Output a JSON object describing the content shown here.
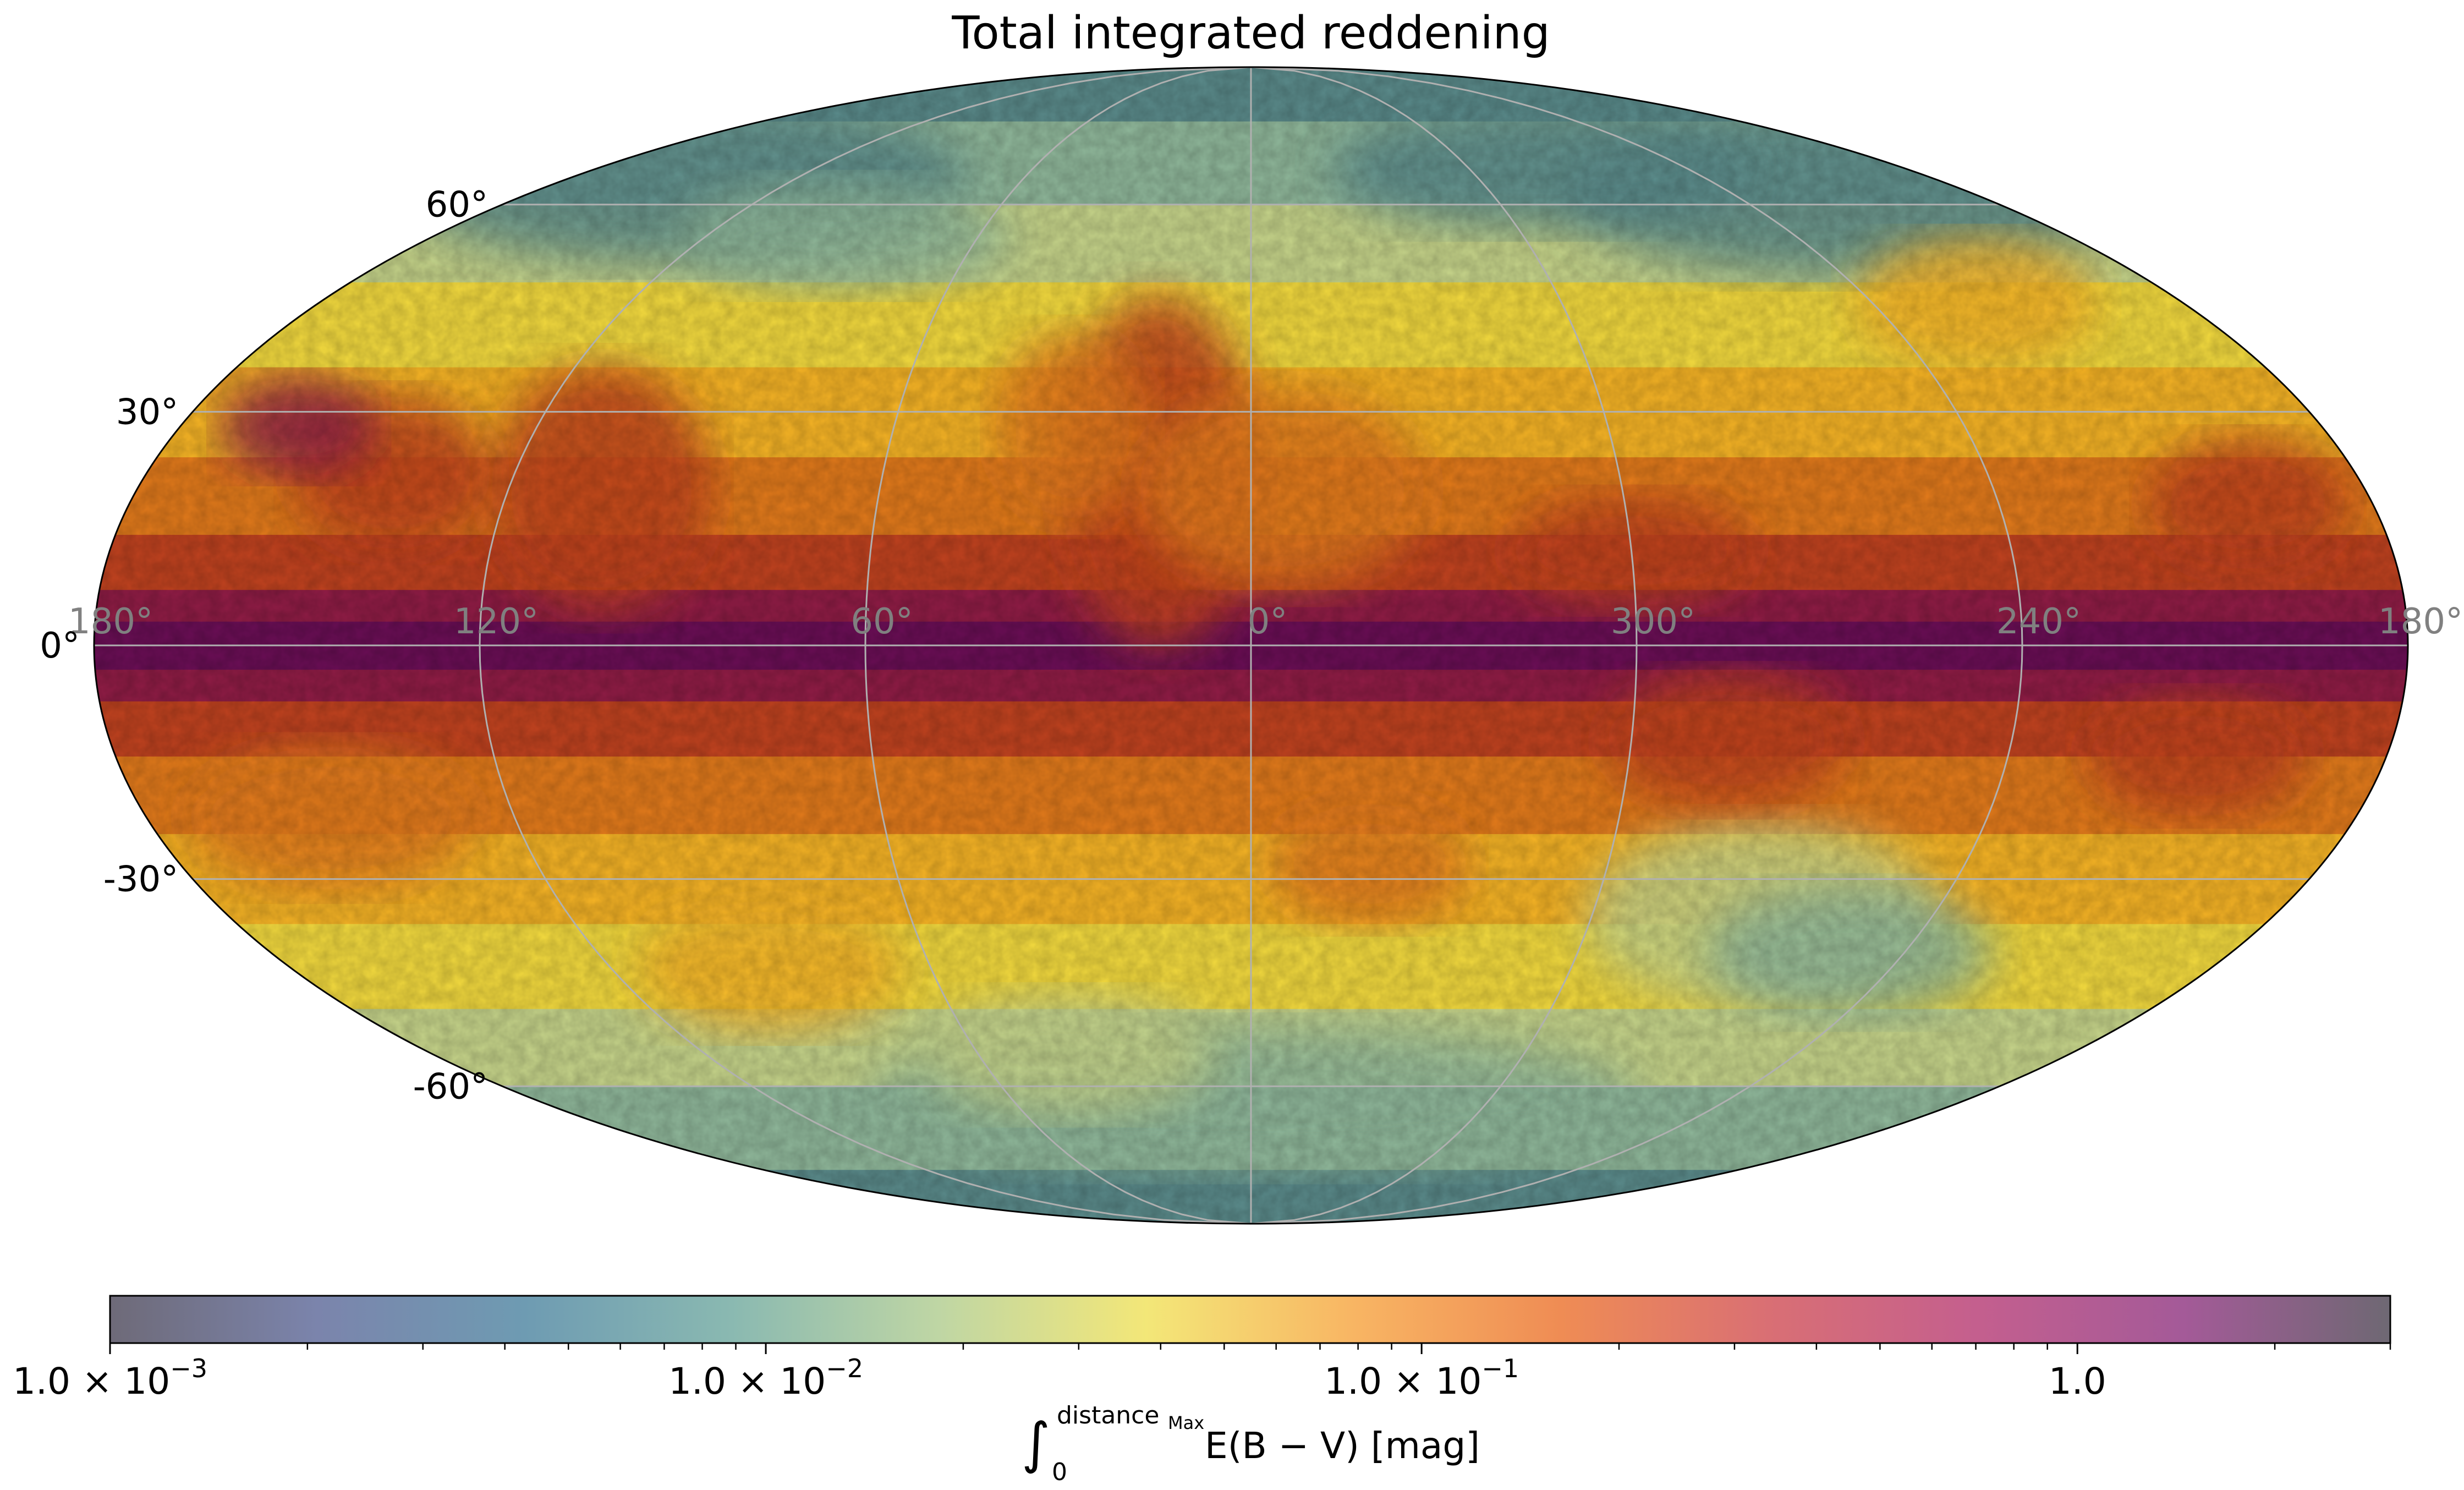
{
  "chart_data": {
    "type": "heatmap",
    "projection": "mollweide",
    "title": "Total integrated reddening",
    "longitude_ticks": [
      {
        "lon": 180,
        "label": "180°"
      },
      {
        "lon": 120,
        "label": "120°"
      },
      {
        "lon": 60,
        "label": "60°"
      },
      {
        "lon": 0,
        "label": "0°"
      },
      {
        "lon": -60,
        "label": "300°"
      },
      {
        "lon": -120,
        "label": "240°"
      },
      {
        "lon": -180,
        "label": "180°"
      }
    ],
    "latitude_ticks": [
      {
        "lat": 60,
        "label": "60°"
      },
      {
        "lat": 30,
        "label": "30°"
      },
      {
        "lat": 0,
        "label": "0°"
      },
      {
        "lat": -30,
        "label": "-30°"
      },
      {
        "lat": -60,
        "label": "-60°"
      }
    ],
    "grid": true,
    "colorbar": {
      "scale": "log",
      "range": [
        0.001,
        3.0
      ],
      "orientation": "horizontal",
      "placement": "bottom",
      "label_integral_lower": "0",
      "label_integral_upper": "distance",
      "label_integral_upper_sub": "Max",
      "label_expression": "E(B − V) [mag]",
      "ticks": [
        {
          "value": 0.001,
          "label": "1.0 × 10",
          "exp": "−3"
        },
        {
          "value": 0.01,
          "label": "1.0 × 10",
          "exp": "−2"
        },
        {
          "value": 0.1,
          "label": "1.0 × 10",
          "exp": "−1"
        },
        {
          "value": 1.0,
          "label": "1.0",
          "exp": ""
        }
      ],
      "colors": [
        "#6e6a78",
        "#7b84ac",
        "#6e9bb2",
        "#8ab9b1",
        "#bfd6a4",
        "#f3e778",
        "#f8b563",
        "#ef8c54",
        "#d96f74",
        "#c45f8e",
        "#a45a98",
        "#6e6873"
      ]
    },
    "value_palette": [
      {
        "value": 0.012,
        "color": "#5a8a8a"
      },
      {
        "value": 0.022,
        "color": "#8fb79a"
      },
      {
        "value": 0.035,
        "color": "#c6d48a"
      },
      {
        "value": 0.05,
        "color": "#f2d93e"
      },
      {
        "value": 0.09,
        "color": "#f5b325"
      },
      {
        "value": 0.16,
        "color": "#e27a1b"
      },
      {
        "value": 0.3,
        "color": "#c0421f"
      },
      {
        "value": 0.6,
        "color": "#8f1c45"
      },
      {
        "value": 1.2,
        "color": "#6a0e55"
      }
    ]
  }
}
